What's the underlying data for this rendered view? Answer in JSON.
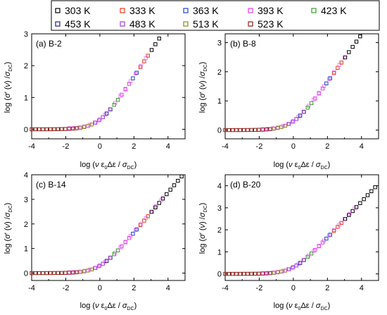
{
  "legend": {
    "placement": "top",
    "entries": [
      {
        "label": "303 K",
        "color": "#000000"
      },
      {
        "label": "333 K",
        "color": "#e8391c"
      },
      {
        "label": "363 K",
        "color": "#1f3fd6"
      },
      {
        "label": "393 K",
        "color": "#e23ef0"
      },
      {
        "label": "423 K",
        "color": "#3a9a2c"
      },
      {
        "label": "453 K",
        "color": "#1b1d8c"
      },
      {
        "label": "483 K",
        "color": "#9b3ee0"
      },
      {
        "label": "513 K",
        "color": "#8a8a1a"
      },
      {
        "label": "523 K",
        "color": "#8b1d14"
      }
    ]
  },
  "chart_data": [
    {
      "type": "scatter",
      "title": "(a) B-2",
      "xlim": [
        -4,
        5
      ],
      "ylim": [
        -0.3,
        3
      ],
      "xticks": [
        "-4",
        "-2",
        "0",
        "2",
        "4"
      ],
      "yticks": [
        "0",
        "1",
        "2",
        "3"
      ],
      "xticks_values": [
        -4,
        -2,
        0,
        2,
        4
      ],
      "yticks_values": [
        0,
        1,
        2,
        3
      ],
      "x_max_point": 3.7
    },
    {
      "type": "scatter",
      "title": "(b) B-8",
      "xlim": [
        -4,
        5
      ],
      "ylim": [
        -0.3,
        3.3
      ],
      "xticks": [
        "-4",
        "-2",
        "0",
        "2",
        "4"
      ],
      "yticks": [
        "0",
        "1",
        "2",
        "3"
      ],
      "xticks_values": [
        -4,
        -2,
        0,
        2,
        4
      ],
      "yticks_values": [
        0,
        1,
        2,
        3
      ],
      "x_max_point": 4.0
    },
    {
      "type": "scatter",
      "title": "(c) B-14",
      "xlim": [
        -4,
        5
      ],
      "ylim": [
        -0.3,
        4
      ],
      "xticks": [
        "-4",
        "-2",
        "0",
        "2",
        "4"
      ],
      "yticks": [
        "0",
        "1",
        "2",
        "3",
        "4"
      ],
      "xticks_values": [
        -4,
        -2,
        0,
        2,
        4
      ],
      "yticks_values": [
        0,
        1,
        2,
        3,
        4
      ],
      "x_max_point": 4.9
    },
    {
      "type": "scatter",
      "title": "(d) B-20",
      "xlim": [
        -4,
        5
      ],
      "ylim": [
        -0.3,
        4.5
      ],
      "xticks": [
        "-4",
        "-2",
        "0",
        "2",
        "4"
      ],
      "yticks": [
        "0",
        "1",
        "2",
        "3",
        "4"
      ],
      "xticks_values": [
        -4,
        -2,
        0,
        2,
        4
      ],
      "yticks_values": [
        0,
        1,
        2,
        3,
        4
      ],
      "x_max_point": 4.9
    }
  ]
}
